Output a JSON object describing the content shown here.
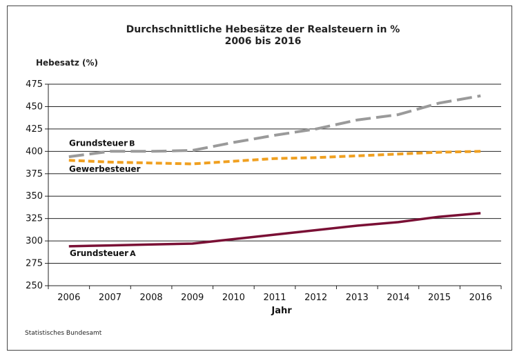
{
  "chart_data": {
    "type": "line",
    "title": "Durchschnittliche Hebesätze der Realsteuern in %",
    "subtitle": "2006 bis 2016",
    "ylabel": "Hebesatz (%)",
    "xlabel": "Jahr",
    "ylim": [
      250,
      475
    ],
    "yticks": [
      250,
      275,
      300,
      325,
      350,
      375,
      400,
      425,
      450,
      475
    ],
    "grid": true,
    "categories": [
      "2006",
      "2007",
      "2008",
      "2009",
      "2010",
      "2011",
      "2012",
      "2013",
      "2014",
      "2015",
      "2016"
    ],
    "series": [
      {
        "name": "Grundsteuer B",
        "label_main": "Grundsteuer",
        "label_suffix": "B",
        "color": "#9a9a9a",
        "style": "dashed",
        "values": [
          394,
          400,
          400,
          401,
          410,
          418,
          425,
          435,
          441,
          454,
          462
        ]
      },
      {
        "name": "Gewerbesteuer",
        "label_main": "Gewerbesteuer",
        "label_suffix": "",
        "color": "#f0a020",
        "style": "dashed",
        "values": [
          390,
          388,
          387,
          386,
          389,
          392,
          393,
          395,
          397,
          399,
          400
        ]
      },
      {
        "name": "Grundsteuer A",
        "label_main": "Grundsteuer",
        "label_suffix": "A",
        "color": "#7a1035",
        "style": "solid",
        "values": [
          294,
          295,
          296,
          297,
          302,
          307,
          312,
          317,
          321,
          327,
          331
        ]
      }
    ]
  },
  "footer": {
    "source": "Statistisches Bundesamt"
  }
}
